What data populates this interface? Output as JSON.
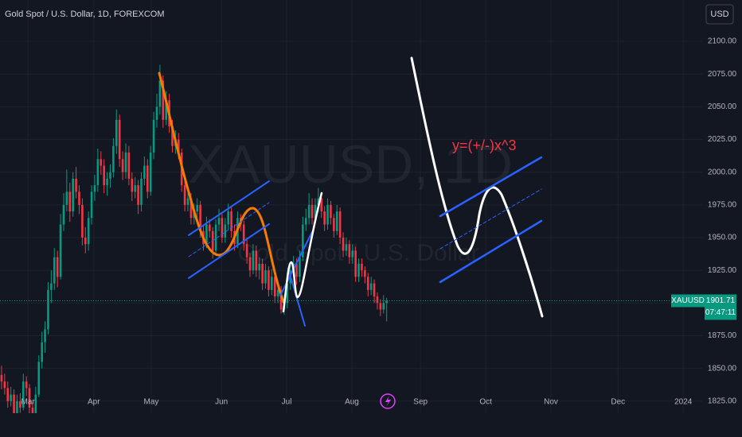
{
  "chart_data": {
    "type": "candlestick",
    "title": "Gold Spot / U.S. Dollar, 1D, FOREXCOM",
    "watermark": "XAUUSD, 1D",
    "watermark_subtitle": "Gold Spot / U.S. Dollar",
    "annotation": "y=(+/-)x^3",
    "currency": "USD",
    "symbol": "XAUUSD",
    "last_price": 1901.71,
    "countdown": "07:47:11",
    "up_color": "#089981",
    "down_color": "#f23645",
    "grid": true,
    "xlim": [
      -0.5,
      225.6
    ],
    "ylim": [
      1815.8,
      2131.6
    ],
    "xticks": [
      {
        "value": 8.5,
        "label": "Mar"
      },
      {
        "value": 29.7,
        "label": "Apr"
      },
      {
        "value": 48.2,
        "label": "May"
      },
      {
        "value": 70.8,
        "label": "Jun"
      },
      {
        "value": 91.8,
        "label": "Jul"
      },
      {
        "value": 112.8,
        "label": "Aug"
      },
      {
        "value": 134.9,
        "label": "Sep"
      },
      {
        "value": 155.9,
        "label": "Oct"
      },
      {
        "value": 176.9,
        "label": "Nov"
      },
      {
        "value": 198.5,
        "label": "Dec"
      },
      {
        "value": 219.5,
        "label": "2024"
      }
    ],
    "yticks": [
      {
        "value": 1825,
        "label": "1825.00"
      },
      {
        "value": 1850,
        "label": "1850.00"
      },
      {
        "value": 1875,
        "label": "1875.00"
      },
      {
        "value": 1900,
        "label": "1900.00"
      },
      {
        "value": 1925,
        "label": "1925.00"
      },
      {
        "value": 1950,
        "label": "1950.00"
      },
      {
        "value": 1975,
        "label": "1975.00"
      },
      {
        "value": 2000,
        "label": "2000.00"
      },
      {
        "value": 2025,
        "label": "2025.00"
      },
      {
        "value": 2050,
        "label": "2050.00"
      },
      {
        "value": 2075,
        "label": "2075.00"
      },
      {
        "value": 2100,
        "label": "2100.00"
      }
    ],
    "candles": [
      [
        1845,
        1852,
        1834,
        1840
      ],
      [
        1840,
        1846,
        1830,
        1835
      ],
      [
        1835,
        1840,
        1820,
        1825
      ],
      [
        1825,
        1836,
        1821,
        1830
      ],
      [
        1830,
        1834,
        1810,
        1815
      ],
      [
        1815,
        1830,
        1812,
        1825
      ],
      [
        1825,
        1831,
        1816,
        1820
      ],
      [
        1820,
        1846,
        1818,
        1840
      ],
      [
        1840,
        1844,
        1829,
        1835
      ],
      [
        1835,
        1838,
        1815,
        1820
      ],
      [
        1820,
        1824,
        1808,
        1813
      ],
      [
        1813,
        1836,
        1810,
        1830
      ],
      [
        1830,
        1860,
        1828,
        1855
      ],
      [
        1855,
        1878,
        1850,
        1870
      ],
      [
        1870,
        1886,
        1862,
        1880
      ],
      [
        1880,
        1916,
        1876,
        1910
      ],
      [
        1910,
        1925,
        1900,
        1915
      ],
      [
        1915,
        1942,
        1910,
        1935
      ],
      [
        1935,
        1940,
        1912,
        1920
      ],
      [
        1920,
        1968,
        1918,
        1960
      ],
      [
        1960,
        1984,
        1955,
        1975
      ],
      [
        1975,
        2002,
        1970,
        1985
      ],
      [
        1985,
        1992,
        1962,
        1970
      ],
      [
        1970,
        2000,
        1966,
        1995
      ],
      [
        1995,
        2004,
        1980,
        1985
      ],
      [
        1985,
        1990,
        1968,
        1975
      ],
      [
        1975,
        1980,
        1944,
        1950
      ],
      [
        1950,
        1958,
        1938,
        1945
      ],
      [
        1945,
        1970,
        1940,
        1965
      ],
      [
        1965,
        1990,
        1960,
        1985
      ],
      [
        1985,
        1998,
        1978,
        1990
      ],
      [
        1990,
        2018,
        1985,
        2010
      ],
      [
        2010,
        2016,
        1998,
        2005
      ],
      [
        2005,
        2010,
        1984,
        1990
      ],
      [
        1990,
        2000,
        1982,
        1995
      ],
      [
        1995,
        2006,
        1988,
        2000
      ],
      [
        2000,
        2026,
        1996,
        2020
      ],
      [
        2020,
        2048,
        2014,
        2040
      ],
      [
        2040,
        2044,
        2004,
        2010
      ],
      [
        2010,
        2016,
        1994,
        2000
      ],
      [
        2000,
        2022,
        1995,
        2015
      ],
      [
        2015,
        2020,
        1990,
        1995
      ],
      [
        1995,
        2000,
        1978,
        1985
      ],
      [
        1985,
        1996,
        1980,
        1990
      ],
      [
        1990,
        1994,
        1968,
        1975
      ],
      [
        1975,
        2000,
        1970,
        1995
      ],
      [
        1995,
        2012,
        1990,
        2005
      ],
      [
        2005,
        2010,
        1980,
        1985
      ],
      [
        1985,
        2020,
        1982,
        2015
      ],
      [
        2015,
        2046,
        2010,
        2040
      ],
      [
        2040,
        2060,
        2034,
        2050
      ],
      [
        2050,
        2082,
        2044,
        2070
      ],
      [
        2070,
        2074,
        2034,
        2040
      ],
      [
        2040,
        2062,
        2036,
        2055
      ],
      [
        2055,
        2060,
        2030,
        2035
      ],
      [
        2035,
        2040,
        2015,
        2020
      ],
      [
        2020,
        2032,
        2014,
        2025
      ],
      [
        2025,
        2030,
        2010,
        2015
      ],
      [
        2015,
        2018,
        1985,
        1990
      ],
      [
        1990,
        1996,
        1970,
        1975
      ],
      [
        1975,
        1986,
        1970,
        1980
      ],
      [
        1980,
        1984,
        1960,
        1965
      ],
      [
        1965,
        1976,
        1960,
        1970
      ],
      [
        1970,
        1980,
        1964,
        1975
      ],
      [
        1975,
        1978,
        1950,
        1955
      ],
      [
        1955,
        1960,
        1940,
        1945
      ],
      [
        1945,
        1966,
        1942,
        1960
      ],
      [
        1960,
        1964,
        1950,
        1955
      ],
      [
        1955,
        1958,
        1934,
        1940
      ],
      [
        1940,
        1964,
        1936,
        1960
      ],
      [
        1960,
        1972,
        1955,
        1965
      ],
      [
        1965,
        1968,
        1946,
        1950
      ],
      [
        1950,
        1965,
        1946,
        1960
      ],
      [
        1960,
        1976,
        1956,
        1970
      ],
      [
        1970,
        1974,
        1950,
        1955
      ],
      [
        1955,
        1960,
        1940,
        1945
      ],
      [
        1945,
        1970,
        1942,
        1965
      ],
      [
        1965,
        1968,
        1955,
        1960
      ],
      [
        1960,
        1963,
        1940,
        1945
      ],
      [
        1945,
        1950,
        1930,
        1935
      ],
      [
        1935,
        1938,
        1920,
        1925
      ],
      [
        1925,
        1945,
        1922,
        1940
      ],
      [
        1940,
        1944,
        1920,
        1925
      ],
      [
        1925,
        1935,
        1918,
        1930
      ],
      [
        1930,
        1934,
        1910,
        1915
      ],
      [
        1915,
        1930,
        1911,
        1925
      ],
      [
        1925,
        1928,
        1905,
        1910
      ],
      [
        1910,
        1926,
        1906,
        1920
      ],
      [
        1920,
        1924,
        1900,
        1905
      ],
      [
        1905,
        1916,
        1900,
        1910
      ],
      [
        1910,
        1913,
        1892,
        1895
      ],
      [
        1895,
        1906,
        1891,
        1900
      ],
      [
        1900,
        1920,
        1896,
        1915
      ],
      [
        1915,
        1930,
        1910,
        1925
      ],
      [
        1925,
        1936,
        1920,
        1930
      ],
      [
        1930,
        1934,
        1914,
        1920
      ],
      [
        1920,
        1940,
        1916,
        1935
      ],
      [
        1935,
        1966,
        1932,
        1960
      ],
      [
        1960,
        1972,
        1955,
        1965
      ],
      [
        1965,
        1984,
        1960,
        1975
      ],
      [
        1975,
        1980,
        1960,
        1965
      ],
      [
        1965,
        1980,
        1960,
        1975
      ],
      [
        1975,
        1988,
        1970,
        1980
      ],
      [
        1980,
        1984,
        1965,
        1970
      ],
      [
        1970,
        1974,
        1955,
        1960
      ],
      [
        1960,
        1980,
        1956,
        1975
      ],
      [
        1975,
        1978,
        1960,
        1965
      ],
      [
        1965,
        1968,
        1950,
        1955
      ],
      [
        1955,
        1975,
        1952,
        1970
      ],
      [
        1970,
        1973,
        1945,
        1950
      ],
      [
        1950,
        1954,
        1935,
        1940
      ],
      [
        1940,
        1950,
        1936,
        1945
      ],
      [
        1945,
        1948,
        1930,
        1935
      ],
      [
        1935,
        1945,
        1930,
        1940
      ],
      [
        1940,
        1943,
        1916,
        1920
      ],
      [
        1920,
        1934,
        1916,
        1930
      ],
      [
        1930,
        1934,
        1920,
        1925
      ],
      [
        1925,
        1928,
        1915,
        1920
      ],
      [
        1920,
        1923,
        1905,
        1910
      ],
      [
        1910,
        1920,
        1906,
        1915
      ],
      [
        1915,
        1918,
        1900,
        1905
      ],
      [
        1905,
        1908,
        1895,
        1900
      ],
      [
        1900,
        1903,
        1890,
        1895
      ],
      [
        1895,
        1906,
        1892,
        1900
      ],
      [
        1900,
        1904,
        1886,
        1901.71
      ]
    ]
  }
}
